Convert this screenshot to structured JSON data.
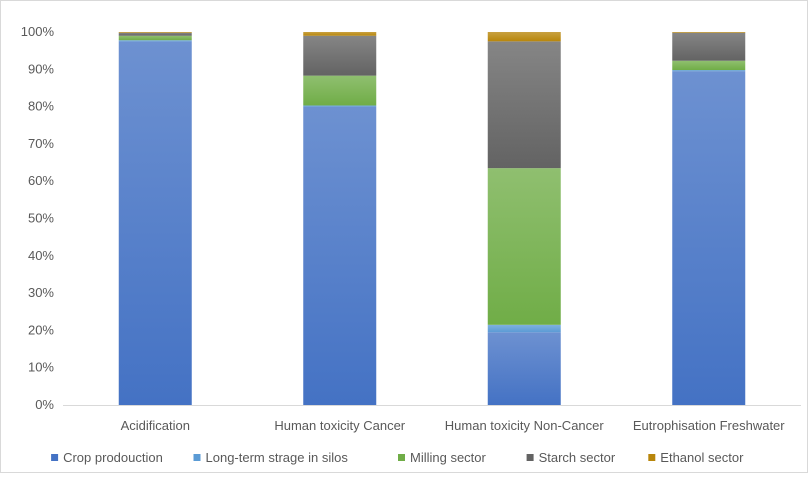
{
  "chart_data": {
    "type": "bar",
    "stacked": true,
    "percent_stacked": true,
    "categories": [
      "Acidification",
      "Human toxicity Cancer",
      "Human toxicity Non-Cancer",
      "Eutrophisation Freshwater"
    ],
    "series": [
      {
        "name": "Crop prodouction",
        "color": "#4472C4",
        "values": [
          97.5,
          80.0,
          19.5,
          89.5
        ]
      },
      {
        "name": "Long-term strage in silos",
        "color": "#5B9BD5",
        "values": [
          0.3,
          0.3,
          2.0,
          0.3
        ]
      },
      {
        "name": "Milling sector",
        "color": "#70AD47",
        "values": [
          1.2,
          8.0,
          42.0,
          2.5
        ]
      },
      {
        "name": "Starch sector",
        "color": "#636363",
        "values": [
          0.8,
          10.7,
          34.0,
          7.5
        ]
      },
      {
        "name": "Ethanol sector",
        "color": "#B8860B",
        "values": [
          0.2,
          1.0,
          2.5,
          0.2
        ]
      }
    ],
    "yticks": [
      "0%",
      "10%",
      "20%",
      "30%",
      "40%",
      "50%",
      "60%",
      "70%",
      "80%",
      "90%",
      "100%"
    ],
    "ylim": [
      0,
      100
    ],
    "grid": false,
    "legend_position": "bottom"
  }
}
